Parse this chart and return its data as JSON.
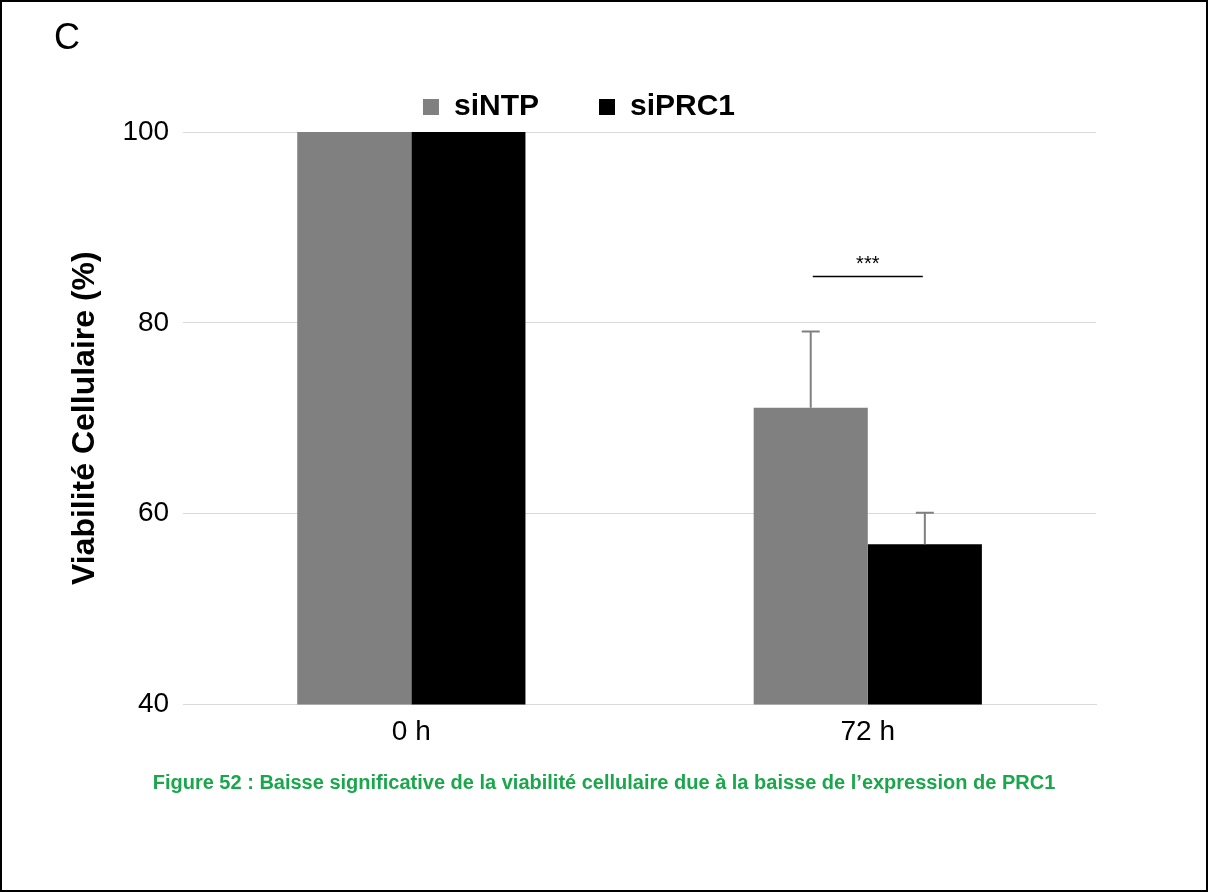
{
  "chart_data": {
    "type": "bar",
    "categories": [
      "0 h",
      "72 h"
    ],
    "series": [
      {
        "name": "siNTP",
        "color": "#808080",
        "values": [
          100,
          71.1
        ],
        "errors": [
          null,
          [
            71.1,
            79.1
          ]
        ]
      },
      {
        "name": "siPRC1",
        "color": "#000000",
        "values": [
          100,
          56.8
        ],
        "errors": [
          null,
          [
            56.8,
            60.1
          ]
        ]
      }
    ],
    "ylabel": "Viabilité Cellulaire (%)",
    "ylim": [
      40,
      100
    ],
    "yticks": [
      40,
      60,
      80,
      100
    ],
    "grid": "y",
    "legend": "top",
    "annotations": [
      "C",
      "***",
      "Figure 52 : Baisse significative de la viabilité cellulaire due à la baisse de l’expression de PRC1"
    ]
  }
}
